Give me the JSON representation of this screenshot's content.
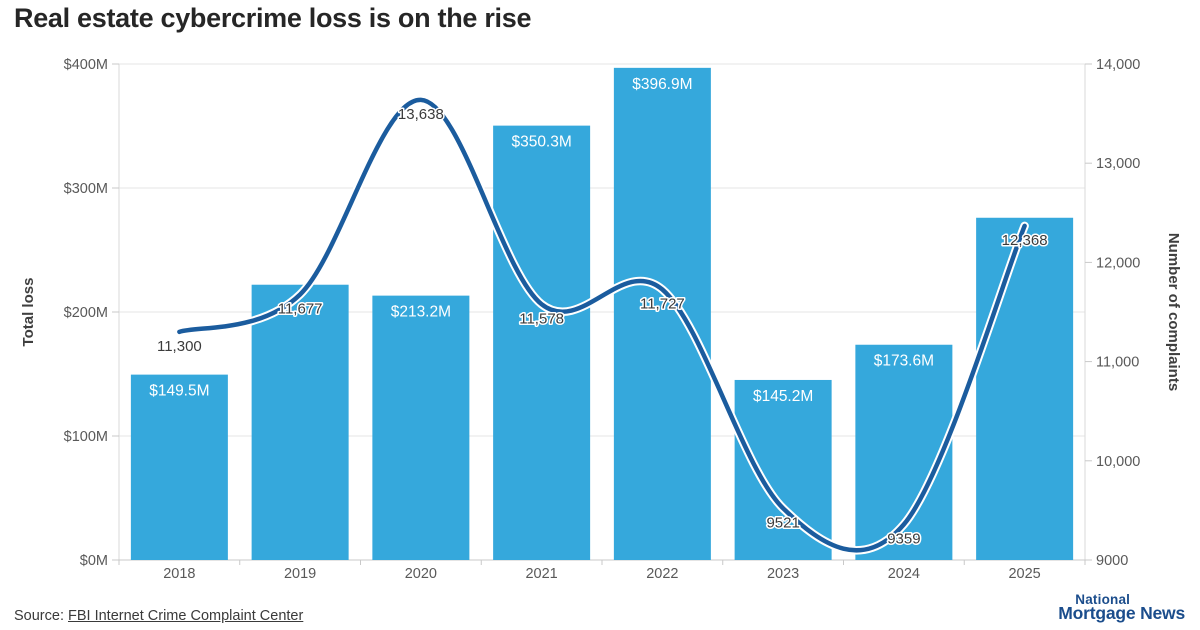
{
  "title": "Real estate cybercrime loss is on the rise",
  "source": {
    "prefix": "Source: ",
    "link_text": "FBI Internet Crime Complaint Center"
  },
  "logo": {
    "line1": "National",
    "line2": "Mortgage News",
    "color": "#1b4d8c"
  },
  "colors": {
    "bar": "#35a8dc",
    "line": "#1b5c9e",
    "line_halo": "#ffffff",
    "grid": "#e6e6e6",
    "axis_line": "#d9d9d9",
    "tick": "#c9c9c9",
    "baseline": "#c9c9c9"
  },
  "chart_data": {
    "type": "bar+line dual-axis",
    "title": "Real estate cybercrime loss is on the rise",
    "categories": [
      "2018",
      "2019",
      "2020",
      "2021",
      "2022",
      "2023",
      "2024",
      "2025"
    ],
    "series": [
      {
        "name": "Total loss",
        "type": "bar",
        "axis": "left",
        "values": [
          149.5,
          222,
          213.2,
          350.3,
          396.9,
          145.2,
          173.6,
          276
        ],
        "value_labels": [
          "$149.5M",
          null,
          "$213.2M",
          "$350.3M",
          "$396.9M",
          "$145.2M",
          "$173.6M",
          null
        ],
        "note": "2019 and 2025 bars carry no visible data label; their values are estimated from bar heights"
      },
      {
        "name": "Number of complaints",
        "type": "line",
        "axis": "right",
        "values": [
          11300,
          11677,
          13638,
          11578,
          11727,
          9521,
          9359,
          12368
        ],
        "value_labels": [
          "11,300",
          "11,677",
          "13,638",
          "11,578",
          "11,727",
          "9521",
          "9359",
          "12,368"
        ]
      }
    ],
    "left_axis": {
      "title": "Total loss",
      "min": 0,
      "max": 400,
      "tick_values": [
        0,
        100,
        200,
        300,
        400
      ],
      "tick_labels": [
        "$0M",
        "$100M",
        "$200M",
        "$300M",
        "$400M"
      ]
    },
    "right_axis": {
      "title": "Number of complaints",
      "min": 9000,
      "max": 14000,
      "tick_values": [
        9000,
        10000,
        11000,
        12000,
        13000,
        14000
      ],
      "tick_labels": [
        "9000",
        "10,000",
        "11,000",
        "12,000",
        "13,000",
        "14,000"
      ]
    },
    "x_axis": {
      "tick_labels": [
        "2018",
        "2019",
        "2020",
        "2021",
        "2022",
        "2023",
        "2024",
        "2025"
      ]
    },
    "grid": "horizontal",
    "legend": "none"
  }
}
